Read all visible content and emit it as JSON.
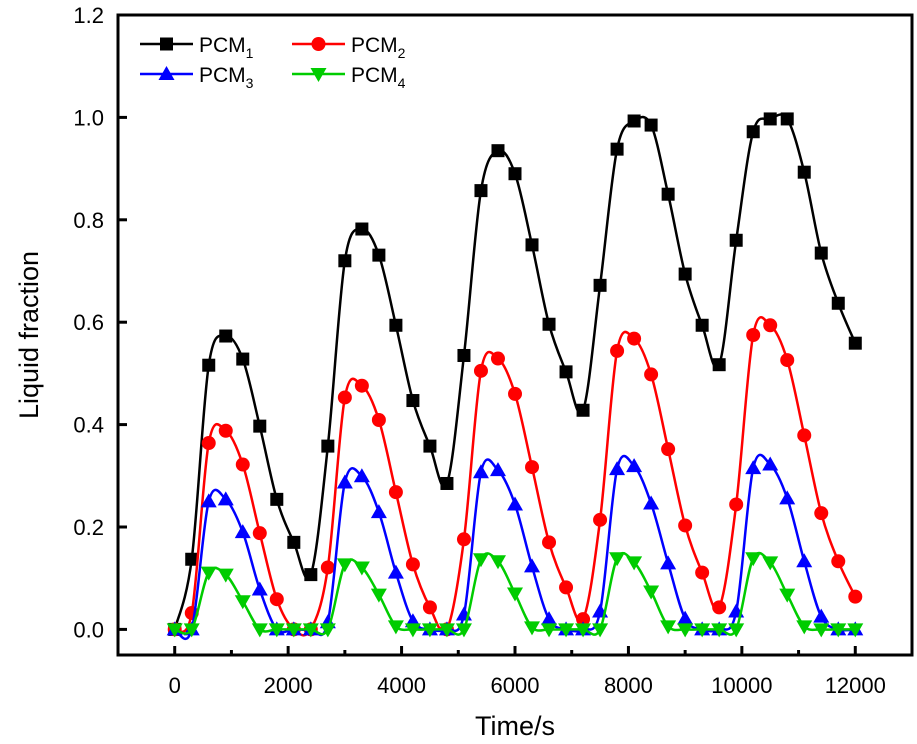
{
  "chart_data": {
    "type": "line",
    "title": "",
    "xlabel": "Time/s",
    "ylabel": "Liquid fraction",
    "xlim": [
      -1000,
      13000
    ],
    "ylim": [
      -0.05,
      1.2
    ],
    "xticks": [
      0,
      2000,
      4000,
      6000,
      8000,
      10000,
      12000
    ],
    "xtick_labels": [
      "0",
      "2000",
      "4000",
      "6000",
      "8000",
      "10000",
      "12000"
    ],
    "xminor_ticks": [
      1000,
      3000,
      5000,
      7000,
      9000,
      11000
    ],
    "yticks": [
      0.0,
      0.2,
      0.4,
      0.6,
      0.8,
      1.0,
      1.2
    ],
    "ytick_labels": [
      "0.0",
      "0.2",
      "0.4",
      "0.6",
      "0.8",
      "1.0",
      "1.2"
    ],
    "grid": false,
    "legend_position": "top-left",
    "smoothed_lines": true,
    "x": [
      0,
      300,
      600,
      900,
      1200,
      1500,
      1800,
      2100,
      2400,
      2700,
      3000,
      3300,
      3600,
      3900,
      4200,
      4500,
      4800,
      5100,
      5400,
      5700,
      6000,
      6300,
      6600,
      6900,
      7200,
      7500,
      7800,
      8100,
      8400,
      8700,
      9000,
      9300,
      9600,
      9900,
      10200,
      10500,
      10800,
      11100,
      11400,
      11700,
      12000
    ],
    "series": [
      {
        "name": "PCM",
        "subscript": "1",
        "color": "#000000",
        "marker": "square",
        "values": [
          0,
          0.137,
          0.516,
          0.573,
          0.528,
          0.397,
          0.254,
          0.17,
          0.107,
          0.358,
          0.72,
          0.782,
          0.731,
          0.594,
          0.447,
          0.358,
          0.285,
          0.535,
          0.857,
          0.935,
          0.89,
          0.751,
          0.596,
          0.503,
          0.428,
          0.672,
          0.938,
          0.993,
          0.985,
          0.85,
          0.694,
          0.594,
          0.517,
          0.76,
          0.972,
          0.997,
          0.997,
          0.893,
          0.735,
          0.637,
          0.559
        ]
      },
      {
        "name": "PCM",
        "subscript": "2",
        "color": "#ff0000",
        "marker": "circle",
        "values": [
          0,
          0.032,
          0.364,
          0.388,
          0.322,
          0.188,
          0.059,
          0,
          0,
          0.121,
          0.453,
          0.476,
          0.409,
          0.268,
          0.127,
          0.043,
          0,
          0.176,
          0.505,
          0.529,
          0.46,
          0.317,
          0.17,
          0.082,
          0.02,
          0.214,
          0.544,
          0.568,
          0.498,
          0.352,
          0.203,
          0.111,
          0.043,
          0.244,
          0.575,
          0.594,
          0.526,
          0.379,
          0.227,
          0.133,
          0.064
        ]
      },
      {
        "name": "PCM",
        "subscript": "3",
        "color": "#0000ff",
        "marker": "triangle-up",
        "values": [
          0,
          0,
          0.25,
          0.254,
          0.19,
          0.078,
          0,
          0,
          0,
          0.014,
          0.287,
          0.299,
          0.229,
          0.111,
          0.016,
          0,
          0,
          0.029,
          0.307,
          0.311,
          0.244,
          0.123,
          0.02,
          0,
          0,
          0.035,
          0.313,
          0.319,
          0.246,
          0.129,
          0.021,
          0,
          0,
          0.035,
          0.315,
          0.322,
          0.256,
          0.133,
          0.025,
          0,
          0
        ]
      },
      {
        "name": "PCM",
        "subscript": "4",
        "color": "#00cc00",
        "marker": "triangle-down",
        "values": [
          0,
          0,
          0.111,
          0.107,
          0.055,
          0,
          0,
          0,
          0,
          0,
          0.127,
          0.121,
          0.068,
          0.006,
          0,
          0,
          0,
          0,
          0.137,
          0.133,
          0.07,
          0.004,
          0,
          0,
          0,
          0,
          0.139,
          0.131,
          0.074,
          0.006,
          0,
          0,
          0,
          0,
          0.139,
          0.131,
          0.068,
          0.006,
          0,
          0,
          0
        ]
      }
    ]
  }
}
